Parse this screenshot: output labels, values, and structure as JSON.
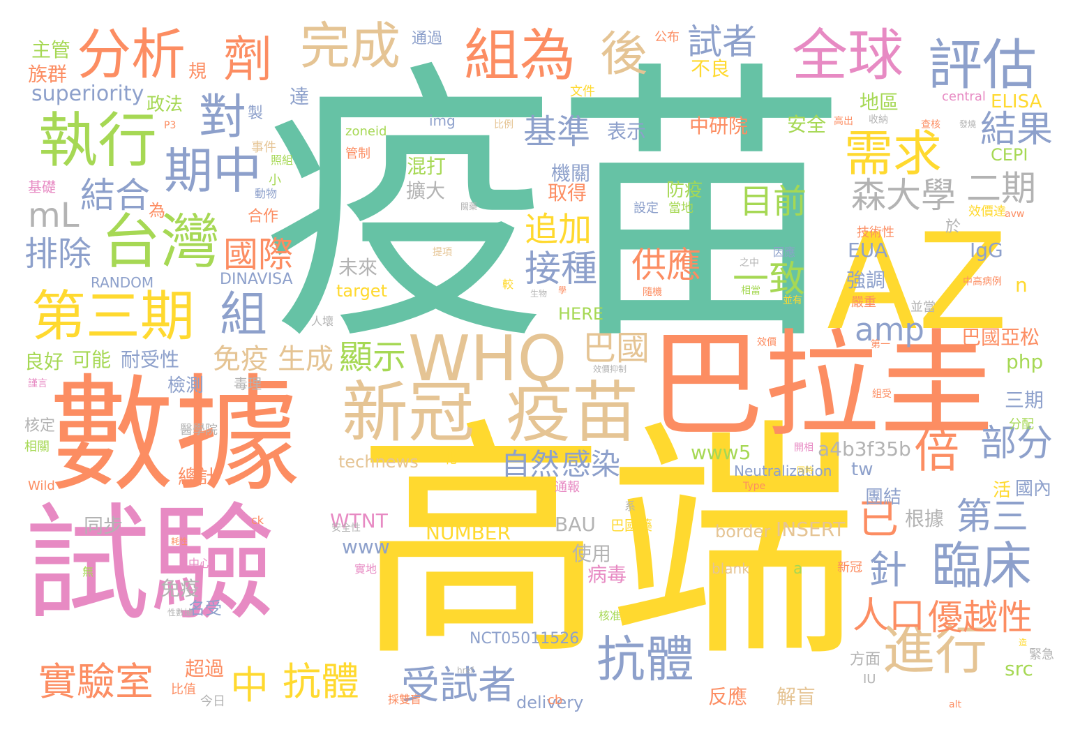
{
  "palette": {
    "teal": "#66c2a5",
    "orange": "#fc8d62",
    "blue": "#8da0cb",
    "pink": "#e78ac3",
    "green": "#a6d854",
    "yellow": "#ffd92f",
    "tan": "#e5c494",
    "gray": "#b3b3b3"
  },
  "words": [
    "疫苗",
    "高端",
    "數據",
    "試驗",
    "巴拉圭",
    "AZ",
    "WHO",
    "新冠",
    "疫苗",
    "執行",
    "台灣",
    "第三期",
    "分析",
    "劑",
    "完成",
    "組為",
    "後",
    "全球",
    "評估",
    "對",
    "期中",
    "組",
    "需求",
    "巴國",
    "目前",
    "供應",
    "一致",
    "臨床",
    "進行",
    "倍",
    "抗體",
    "實驗室",
    "中",
    "抗體",
    "受試者",
    "結合",
    "排除",
    "國際",
    "mL",
    "森大學",
    "二期",
    "部分",
    "第三",
    "針",
    "已",
    "人口",
    "優越性",
    "amp",
    "基準",
    "追加",
    "接種",
    "顯示",
    "免疫",
    "生成",
    "自然",
    "感染",
    "結果",
    "試者",
    "superiority",
    "主管",
    "族群",
    "規",
    "政法",
    "製",
    "達",
    "通過",
    "公布",
    "不良",
    "文件",
    "ELISA",
    "中研院",
    "安全",
    "表示",
    "地區",
    "CEPI",
    "防疫",
    "設定",
    "當地",
    "機關",
    "取得",
    "混打",
    "擴大",
    "未來",
    "EUA",
    "IgG",
    "強調",
    "n",
    "效價達",
    "技術性",
    "於",
    "巴國亞松",
    "php",
    "三期",
    "耐受性",
    "可能",
    "良好",
    "檢測",
    "毒理",
    "核定",
    "相關",
    "醫學院",
    "technews",
    "化",
    "www5",
    "a4b3f35b",
    "tw",
    "團結",
    "活",
    "國內",
    "根據",
    "BAU",
    "INSERT",
    "border",
    "NUMBER",
    "WTNT",
    "同步",
    "www",
    "使用",
    "病毒",
    "免疫",
    "名受",
    "a",
    "blank",
    "新冠",
    "總計",
    "超過",
    "比值",
    "今日",
    "反應",
    "解盲",
    "delivery",
    "cb",
    "採雙盲",
    "方面",
    "IU",
    "src",
    "緊急",
    "alt",
    "NCT05011526",
    "href",
    "Neutralization",
    "img",
    "zoneid",
    "管制",
    "事件",
    "照組",
    "小",
    "動物",
    "合作",
    "為",
    "RANDOM",
    "DINAVISA",
    "target",
    "HERE",
    "基礎",
    "P3",
    "比例",
    "高出",
    "收納",
    "查核",
    "發燒",
    "central",
    "avw",
    "提項",
    "因應",
    "之中",
    "相當",
    "隨機",
    "中高病例",
    "嚴重",
    "並當",
    "第一",
    "並有",
    "效價",
    "組受",
    "分配",
    "開相",
    "同時",
    "Type",
    "系",
    "通報",
    "巴國藥",
    "ck",
    "實地",
    "安全性",
    "耗性",
    "中心",
    "無",
    "性數據",
    "謹言",
    "學",
    "效價抑制",
    "人壞",
    "較",
    "造",
    "Wild",
    "核准",
    "關藥",
    "生物",
    "實性"
  ]
}
